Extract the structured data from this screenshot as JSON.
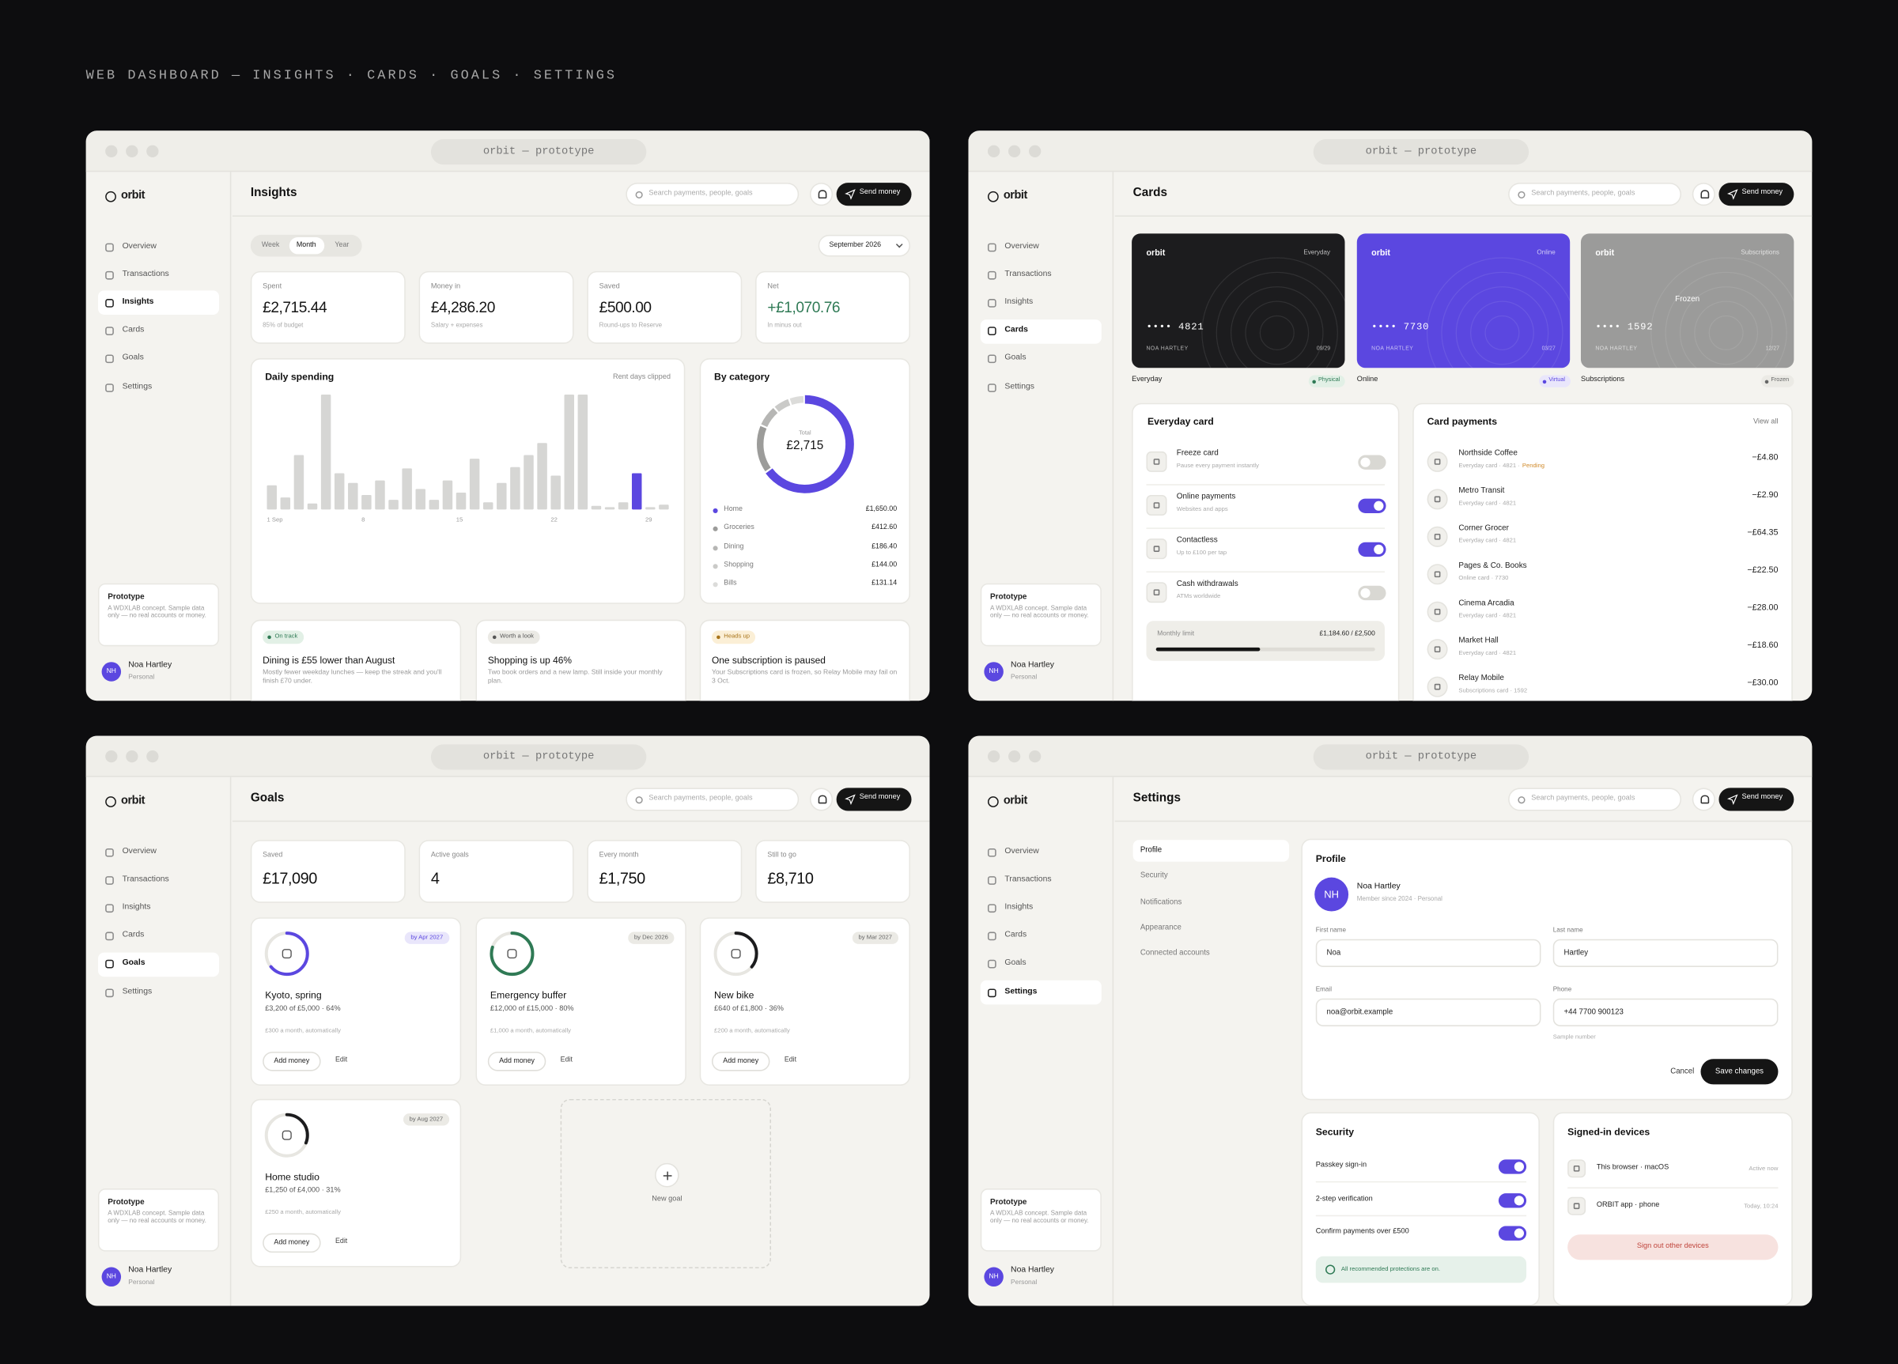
{
  "page_title": "WEB DASHBOARD — INSIGHTS · CARDS · GOALS · SETTINGS",
  "common": {
    "window_title": "orbit — prototype",
    "logo": "orbit",
    "nav": [
      "Overview",
      "Transactions",
      "Insights",
      "Cards",
      "Goals",
      "Settings"
    ],
    "search_placeholder": "Search payments, people, goals",
    "send_button": "Send money",
    "prototype_title": "Prototype",
    "prototype_text": "A WDXLAB concept. Sample data only — no real accounts or money.",
    "user_initials": "NH",
    "user_name": "Noa Hartley",
    "user_type": "Personal"
  },
  "insights": {
    "title": "Insights",
    "active_nav": 2,
    "periods": [
      "Week",
      "Month",
      "Year"
    ],
    "active_period": 1,
    "month": "September 2026",
    "stats": [
      {
        "label": "Spent",
        "value": "£2,715.44",
        "sub": "85% of budget",
        "color": "#151515"
      },
      {
        "label": "Money in",
        "value": "£4,286.20",
        "sub": "Salary + expenses",
        "color": "#151515"
      },
      {
        "label": "Saved",
        "value": "£500.00",
        "sub": "Round-ups to Reserve",
        "color": "#151515"
      },
      {
        "label": "Net",
        "value": "+£1,070.76",
        "sub": "In minus out",
        "color": "#2f7a55"
      }
    ],
    "daily_spending": {
      "title": "Daily spending",
      "note": "Rent days clipped",
      "categories": [
        "1 Sep",
        null,
        null,
        null,
        null,
        null,
        null,
        "8",
        null,
        null,
        null,
        null,
        null,
        null,
        "15",
        null,
        null,
        null,
        null,
        null,
        null,
        "22",
        null,
        null,
        null,
        null,
        null,
        null,
        "29",
        null
      ],
      "values": [
        20,
        10,
        45,
        5,
        95,
        30,
        22,
        12,
        24,
        8,
        34,
        17,
        8,
        24,
        14,
        42,
        6,
        22,
        35,
        45,
        55,
        28,
        95,
        95,
        3,
        2,
        6,
        30,
        2,
        4
      ],
      "colors": [
        "#d6d6d4",
        "#d6d6d4",
        "#d6d6d4",
        "#d6d6d4",
        "#d6d6d4",
        "#d6d6d4",
        "#d6d6d4",
        "#d6d6d4",
        "#d6d6d4",
        "#d6d6d4",
        "#d6d6d4",
        "#d6d6d4",
        "#d6d6d4",
        "#d6d6d4",
        "#d6d6d4",
        "#d6d6d4",
        "#d6d6d4",
        "#d6d6d4",
        "#d6d6d4",
        "#d6d6d4",
        "#d6d6d4",
        "#d6d6d4",
        "#d6d6d4",
        "#d6d6d4",
        "#d6d6d4",
        "#d6d6d4",
        "#d6d6d4",
        "#5b47e0",
        "#d6d6d4",
        "#d6d6d4"
      ],
      "ylim": [
        0,
        100
      ]
    },
    "by_category": {
      "title": "By category",
      "total_label": "Total",
      "total": "£2,715",
      "items": [
        {
          "name": "Home",
          "amount": "£1,650.00",
          "value": 1650,
          "color": "#5b47e0"
        },
        {
          "name": "Groceries",
          "amount": "£412.60",
          "value": 412.6,
          "color": "#9c9c9a"
        },
        {
          "name": "Dining",
          "amount": "£186.40",
          "value": 186.4,
          "color": "#b6b6b4"
        },
        {
          "name": "Shopping",
          "amount": "£144.00",
          "value": 144,
          "color": "#cacac8"
        },
        {
          "name": "Bills",
          "amount": "£131.14",
          "value": 131.14,
          "color": "#dcdcda"
        }
      ]
    },
    "insight_cards": [
      {
        "tag": "On track",
        "title": "Dining is £55 lower than August",
        "body": "Mostly fewer weekday lunches — keep the streak and you'll finish £70 under.",
        "tag_bg": "#e2f0e6",
        "tag_color": "#2f7a55"
      },
      {
        "tag": "Worth a look",
        "title": "Shopping is up 46%",
        "body": "Two book orders and a new lamp. Still inside your monthly plan.",
        "tag_bg": "#ebeae5",
        "tag_color": "#555555"
      },
      {
        "tag": "Heads up",
        "title": "One subscription is paused",
        "body": "Your Subscriptions card is frozen, so Relay Mobile may fail on 3 Oct.",
        "tag_bg": "#fbefd6",
        "tag_color": "#a8741a"
      }
    ]
  },
  "cards": {
    "title": "Cards",
    "active_nav": 3,
    "items": [
      {
        "brand": "orbit",
        "type": "Everyday",
        "number": "•••• 4821",
        "holder": "NOA HARTLEY",
        "expiry": "09/29",
        "label": "Everyday",
        "status": "Physical",
        "color": "#1c1c1e",
        "status_color": "#2f7a55",
        "status_bg": "#e2f0e6"
      },
      {
        "brand": "orbit",
        "type": "Online",
        "number": "•••• 7730",
        "holder": "NOA HARTLEY",
        "expiry": "03/27",
        "label": "Online",
        "status": "Virtual",
        "color": "#5b47e0",
        "status_color": "#5b47e0",
        "status_bg": "#e9e6fb"
      },
      {
        "brand": "orbit",
        "type": "Subscriptions",
        "overlay": "Frozen",
        "number": "•••• 1592",
        "holder": "NOA HARTLEY",
        "expiry": "12/27",
        "label": "Subscriptions",
        "status": "Frozen",
        "color": "#9b9b9a",
        "status_color": "#666666",
        "status_bg": "#ebeae5"
      }
    ],
    "controls": {
      "title": "Everyday card",
      "rows": [
        {
          "title": "Freeze card",
          "sub": "Pause every payment instantly",
          "on": false
        },
        {
          "title": "Online payments",
          "sub": "Websites and apps",
          "on": true
        },
        {
          "title": "Contactless",
          "sub": "Up to £100 per tap",
          "on": true
        },
        {
          "title": "Cash withdrawals",
          "sub": "ATMs worldwide",
          "on": false
        }
      ],
      "limit": {
        "label": "Monthly limit",
        "text": "£1,184.60 / £2,500",
        "spent": 1184.6,
        "max": 2500
      }
    },
    "payments": {
      "title": "Card payments",
      "link": "View all",
      "rows": [
        {
          "name": "Northside Coffee",
          "sub": "Everyday card · 4821 ·",
          "status": "Pending",
          "amount": "−£4.80"
        },
        {
          "name": "Metro Transit",
          "sub": "Everyday card · 4821",
          "amount": "−£2.90"
        },
        {
          "name": "Corner Grocer",
          "sub": "Everyday card · 4821",
          "amount": "−£64.35"
        },
        {
          "name": "Pages & Co. Books",
          "sub": "Online card · 7730",
          "amount": "−£22.50"
        },
        {
          "name": "Cinema Arcadia",
          "sub": "Everyday card · 4821",
          "amount": "−£28.00"
        },
        {
          "name": "Market Hall",
          "sub": "Everyday card · 4821",
          "amount": "−£18.60"
        },
        {
          "name": "Relay Mobile",
          "sub": "Subscriptions card · 1592",
          "amount": "−£30.00"
        }
      ]
    }
  },
  "goals": {
    "title": "Goals",
    "active_nav": 4,
    "stats": [
      {
        "label": "Saved",
        "value": "£17,090"
      },
      {
        "label": "Active goals",
        "value": "4"
      },
      {
        "label": "Every month",
        "value": "£1,750"
      },
      {
        "label": "Still to go",
        "value": "£8,710"
      }
    ],
    "items": [
      {
        "name": "Kyoto, spring",
        "due": "by Apr 2027",
        "progress": "£3,200 of £5,000 · 64%",
        "percent": 64,
        "auto": "£300 a month, automatically",
        "color": "#5b47e0",
        "due_bg": "#e9e6fb",
        "due_color": "#5b47e0"
      },
      {
        "name": "Emergency buffer",
        "due": "by Dec 2026",
        "progress": "£12,000 of £15,000 · 80%",
        "percent": 80,
        "auto": "£1,000 a month, automatically",
        "color": "#2f7a55",
        "due_bg": "#ebeae5",
        "due_color": "#666666"
      },
      {
        "name": "New bike",
        "due": "by Mar 2027",
        "progress": "£640 of £1,800 · 36%",
        "percent": 36,
        "auto": "£200 a month, automatically",
        "color": "#1c1c1e",
        "due_bg": "#ebeae5",
        "due_color": "#666666"
      },
      {
        "name": "Home studio",
        "due": "by Aug 2027",
        "progress": "£1,250 of £4,000 · 31%",
        "percent": 31,
        "auto": "£250 a month, automatically",
        "color": "#1c1c1e",
        "due_bg": "#ebeae5",
        "due_color": "#666666"
      }
    ],
    "add_button": "Add money",
    "edit_button": "Edit",
    "new_goal": "New goal"
  },
  "settings": {
    "title": "Settings",
    "active_nav": 5,
    "menu": [
      "Profile",
      "Security",
      "Notifications",
      "Appearance",
      "Connected accounts"
    ],
    "active_menu": 0,
    "profile": {
      "title": "Profile",
      "initials": "NH",
      "name": "Noa Hartley",
      "since": "Member since 2024 · Personal",
      "fields": [
        {
          "label": "First name",
          "value": "Noa"
        },
        {
          "label": "Last name",
          "value": "Hartley"
        },
        {
          "label": "Email",
          "value": "noa@orbit.example"
        },
        {
          "label": "Phone",
          "value": "+44 7700 900123",
          "hint": "Sample number"
        }
      ],
      "cancel": "Cancel",
      "save": "Save changes"
    },
    "security": {
      "title": "Security",
      "rows": [
        {
          "label": "Passkey sign-in",
          "on": true
        },
        {
          "label": "2-step verification",
          "on": true
        },
        {
          "label": "Confirm payments over £500",
          "on": true
        }
      ],
      "banner": "All recommended protections are on."
    },
    "devices": {
      "title": "Signed-in devices",
      "rows": [
        {
          "name": "This browser · macOS",
          "status": "Active now"
        },
        {
          "name": "ORBIT app · phone",
          "status": "Today, 10:24"
        }
      ],
      "sign_out": "Sign out other devices"
    }
  }
}
